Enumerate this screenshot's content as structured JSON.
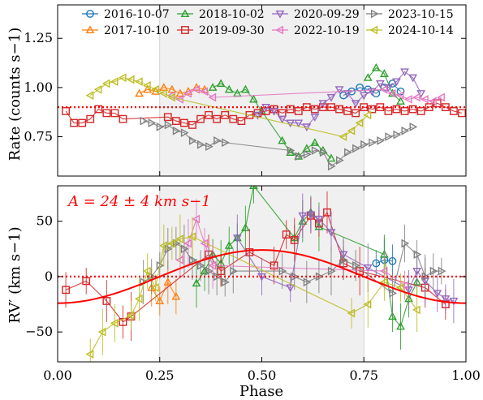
{
  "chart_data": [
    {
      "type": "line",
      "panel": "top",
      "ylabel": "Rate (counts s−1)",
      "xlim": [
        0.0,
        1.0
      ],
      "ylim": [
        0.55,
        1.42
      ],
      "yticks": [
        "0.75",
        "1.00",
        "1.25"
      ],
      "ytick_values": [
        0.75,
        1.0,
        1.25
      ],
      "shaded_band": [
        0.25,
        0.75
      ],
      "reference_line": {
        "y": 0.9,
        "style": "dotted",
        "color": "#ff0000"
      },
      "legend": {
        "placement": "top-right",
        "columns": 4
      },
      "series": [
        {
          "name": "2016-10-07",
          "color": "#1f77b4",
          "marker": "circle",
          "x": [
            0.7,
            0.72,
            0.74,
            0.76,
            0.78,
            0.8,
            0.82,
            0.84
          ],
          "y": [
            0.96,
            0.98,
            1.0,
            0.99,
            0.97,
            1.0,
            1.02,
            0.98
          ]
        },
        {
          "name": "2017-10-10",
          "color": "#ff7f0e",
          "marker": "triangle-up",
          "x": [
            0.2,
            0.22,
            0.24,
            0.26,
            0.28,
            0.3,
            0.32,
            0.34,
            0.36
          ],
          "y": [
            0.97,
            0.99,
            0.98,
            1.0,
            0.99,
            0.97,
            0.98,
            1.0,
            0.99
          ]
        },
        {
          "name": "2018-10-02",
          "color": "#2ca02c",
          "marker": "triangle-up",
          "x": [
            0.38,
            0.4,
            0.42,
            0.44,
            0.46,
            0.48,
            0.5,
            0.55,
            0.57,
            0.59,
            0.61,
            0.63,
            0.65,
            0.67
          ],
          "y": [
            1.0,
            1.02,
            0.99,
            0.97,
            0.99,
            0.94,
            0.88,
            0.73,
            0.67,
            0.65,
            0.69,
            0.72,
            0.68,
            0.64
          ],
          "x2": [
            0.76,
            0.78,
            0.8,
            0.82,
            0.84
          ],
          "y2": [
            1.05,
            1.1,
            1.07,
            0.97,
            0.93
          ]
        },
        {
          "name": "2019-09-30",
          "color": "#d62728",
          "marker": "square",
          "x": [
            0.02,
            0.04,
            0.06,
            0.08,
            0.1,
            0.12,
            0.14,
            0.16,
            0.27,
            0.29,
            0.31,
            0.33,
            0.35,
            0.37,
            0.39,
            0.41,
            0.43,
            0.45,
            0.47,
            0.49,
            0.51,
            0.53,
            0.55,
            0.57,
            0.59,
            0.61,
            0.63,
            0.65,
            0.67,
            0.69,
            0.71,
            0.73,
            0.75,
            0.77,
            0.79,
            0.81,
            0.83,
            0.85,
            0.87,
            0.89,
            0.91,
            0.93,
            0.95,
            0.97,
            0.99
          ],
          "y": [
            0.88,
            0.82,
            0.82,
            0.84,
            0.89,
            0.87,
            0.87,
            0.84,
            0.85,
            0.83,
            0.82,
            0.81,
            0.84,
            0.86,
            0.84,
            0.86,
            0.84,
            0.83,
            0.86,
            0.87,
            0.88,
            0.89,
            0.87,
            0.89,
            0.88,
            0.9,
            0.89,
            0.9,
            0.9,
            0.89,
            0.88,
            0.87,
            0.9,
            0.89,
            0.9,
            0.88,
            0.89,
            0.88,
            0.89,
            0.88,
            0.9,
            0.92,
            0.9,
            0.88,
            0.87
          ]
        },
        {
          "name": "2020-09-29",
          "color": "#9467bd",
          "marker": "triangle-down",
          "x": [
            0.49,
            0.51,
            0.53,
            0.55,
            0.57,
            0.59,
            0.61,
            0.63,
            0.65,
            0.67,
            0.69,
            0.71,
            0.73,
            0.75,
            0.77,
            0.79,
            0.81,
            0.83,
            0.85,
            0.87,
            0.89
          ],
          "y": [
            0.86,
            0.9,
            0.88,
            0.84,
            0.82,
            0.82,
            0.8,
            0.85,
            0.92,
            0.95,
            0.99,
            0.97,
            0.92,
            0.96,
            0.98,
            1.02,
            1.0,
            1.03,
            1.08,
            1.05,
            0.97
          ]
        },
        {
          "name": "2022-10-19",
          "color": "#e377c2",
          "marker": "triangle-left",
          "x": [
            0.28,
            0.3,
            0.32,
            0.34,
            0.36,
            0.38,
            0.8,
            0.82,
            0.84,
            0.86,
            0.88,
            0.9,
            0.92,
            0.94
          ],
          "y": [
            0.96,
            0.94,
            0.97,
            0.99,
            0.98,
            0.95,
            0.99,
            0.97,
            0.96,
            0.94,
            0.95,
            0.94,
            0.93,
            0.95
          ]
        },
        {
          "name": "2023-10-15",
          "color": "#7f7f7f",
          "marker": "triangle-right",
          "x": [
            0.21,
            0.23,
            0.25,
            0.27,
            0.29,
            0.31,
            0.33,
            0.35,
            0.37,
            0.39,
            0.41,
            0.57,
            0.59,
            0.61,
            0.63,
            0.65,
            0.67,
            0.69,
            0.71,
            0.73,
            0.75,
            0.77,
            0.79,
            0.81,
            0.83,
            0.85,
            0.87
          ],
          "y": [
            0.83,
            0.82,
            0.8,
            0.81,
            0.78,
            0.77,
            0.73,
            0.71,
            0.7,
            0.73,
            0.72,
            0.68,
            0.65,
            0.66,
            0.68,
            0.67,
            0.6,
            0.63,
            0.67,
            0.69,
            0.71,
            0.72,
            0.73,
            0.75,
            0.76,
            0.78,
            0.8
          ]
        },
        {
          "name": "2024-10-14",
          "color": "#bcbd22",
          "marker": "triangle-left",
          "x": [
            0.08,
            0.1,
            0.12,
            0.14,
            0.16,
            0.18,
            0.2,
            0.22,
            0.24,
            0.26,
            0.28,
            0.7,
            0.72,
            0.74,
            0.76
          ],
          "y": [
            0.96,
            0.99,
            1.02,
            1.03,
            1.05,
            1.04,
            1.03,
            1.01,
            0.99,
            0.97,
            0.95,
            0.75,
            0.78,
            0.82,
            0.86
          ]
        }
      ]
    },
    {
      "type": "scatter",
      "panel": "bottom",
      "xlabel": "Phase",
      "ylabel": "RV′ (km s−1)",
      "xlim": [
        0.0,
        1.0
      ],
      "ylim": [
        -77,
        82
      ],
      "xticks": [
        "0.00",
        "0.25",
        "0.50",
        "0.75",
        "1.00"
      ],
      "xtick_values": [
        0.0,
        0.25,
        0.5,
        0.75,
        1.0
      ],
      "yticks": [
        "−50",
        "0",
        "50"
      ],
      "ytick_values": [
        -50,
        0,
        50
      ],
      "shaded_band": [
        0.25,
        0.75
      ],
      "reference_line": {
        "y": 0,
        "style": "dotted",
        "color": "#ff0000"
      },
      "annotation": "A = 24 ± 4 km s−1",
      "model_curve": {
        "type": "sinusoid",
        "amplitude": 24,
        "period": 1.0,
        "peak_phase": 0.5,
        "color": "#ff0000"
      },
      "series": [
        {
          "name": "2016-10-07",
          "color": "#1f77b4",
          "marker": "circle",
          "x": [
            0.78,
            0.8,
            0.82
          ],
          "y": [
            12,
            15,
            14
          ]
        },
        {
          "name": "2017-10-10",
          "color": "#ff7f0e",
          "marker": "triangle-up",
          "x": [
            0.23,
            0.25,
            0.27,
            0.29
          ],
          "y": [
            -10,
            -22,
            -5,
            -18
          ]
        },
        {
          "name": "2018-10-02",
          "color": "#2ca02c",
          "marker": "triangle-up",
          "x": [
            0.34,
            0.36,
            0.38,
            0.4,
            0.42,
            0.44,
            0.46,
            0.48,
            0.58,
            0.6,
            0.62,
            0.64,
            0.8,
            0.82,
            0.84,
            0.86,
            0.88
          ],
          "y": [
            -6,
            5,
            20,
            12,
            28,
            35,
            44,
            82,
            35,
            50,
            58,
            45,
            20,
            -36,
            -45,
            -20,
            -5
          ]
        },
        {
          "name": "2019-09-30",
          "color": "#d62728",
          "marker": "square",
          "x": [
            0.02,
            0.07,
            0.12,
            0.16,
            0.18,
            0.37,
            0.4,
            0.47,
            0.53,
            0.56,
            0.58,
            0.62,
            0.64,
            0.66,
            0.7,
            0.74,
            0.9,
            0.95
          ],
          "y": [
            -12,
            -4,
            -22,
            -41,
            -36,
            20,
            5,
            22,
            10,
            38,
            33,
            55,
            48,
            58,
            12,
            5,
            -10,
            -25
          ]
        },
        {
          "name": "2020-09-29",
          "color": "#9467bd",
          "marker": "triangle-down",
          "x": [
            0.44,
            0.5,
            0.57,
            0.6,
            0.62,
            0.64,
            0.67,
            0.7,
            0.76,
            0.86,
            0.88,
            0.9,
            0.93,
            0.95,
            0.97
          ],
          "y": [
            35,
            0,
            -10,
            55,
            56,
            52,
            40,
            20,
            8,
            -12,
            5,
            -4,
            -15,
            -20,
            -22
          ]
        },
        {
          "name": "2022-10-19",
          "color": "#e377c2",
          "marker": "triangle-left",
          "x": [
            0.3,
            0.32,
            0.34,
            0.36,
            0.38,
            0.8,
            0.85
          ],
          "y": [
            15,
            30,
            52,
            30,
            10,
            5,
            -8
          ]
        },
        {
          "name": "2023-10-15",
          "color": "#7f7f7f",
          "marker": "triangle-right",
          "x": [
            0.21,
            0.23,
            0.25,
            0.27,
            0.29,
            0.31,
            0.33,
            0.35,
            0.37,
            0.39,
            0.41,
            0.43,
            0.55,
            0.58,
            0.61,
            0.64,
            0.67,
            0.7,
            0.73,
            0.82,
            0.85,
            0.88,
            0.9,
            0.92,
            0.94
          ],
          "y": [
            -5,
            0,
            10,
            25,
            30,
            25,
            15,
            10,
            5,
            0,
            -5,
            5,
            5,
            0,
            -5,
            0,
            5,
            15,
            10,
            -15,
            30,
            20,
            0,
            5,
            5
          ]
        },
        {
          "name": "2024-10-14",
          "color": "#bcbd22",
          "marker": "triangle-left",
          "x": [
            0.08,
            0.11,
            0.14,
            0.18,
            0.2,
            0.22,
            0.24,
            0.26,
            0.28,
            0.3,
            0.33,
            0.72,
            0.76,
            0.8,
            0.84,
            0.88
          ],
          "y": [
            -70,
            -50,
            -42,
            -35,
            -20,
            5,
            -10,
            28,
            30,
            34,
            36,
            -33,
            -25,
            -5,
            -10,
            -30
          ]
        }
      ]
    }
  ]
}
